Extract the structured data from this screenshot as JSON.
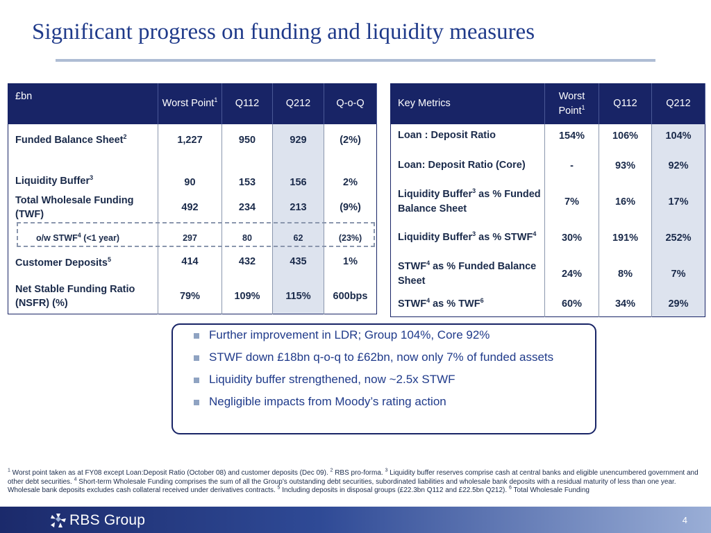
{
  "title": "Significant progress on funding and liquidity measures",
  "table1": {
    "headers": {
      "label": "£bn",
      "worst": "Worst Point",
      "worst_sup": "1",
      "q112": "Q112",
      "q212": "Q212",
      "qoq": "Q-o-Q"
    },
    "rows": [
      {
        "label": "Funded Balance Sheet",
        "sup": "2",
        "worst": "1,227",
        "q112": "950",
        "q212": "929",
        "qoq": "(2%)"
      },
      {
        "label": "Liquidity Buffer",
        "sup": "3",
        "worst": "90",
        "q112": "153",
        "q212": "156",
        "qoq": "2%"
      },
      {
        "label": "Total Wholesale Funding (TWF)",
        "sup": "",
        "worst": "492",
        "q112": "234",
        "q212": "213",
        "qoq": "(9%)"
      },
      {
        "label_pre": "o/w STWF",
        "sup": "4",
        "label_post": " (<1 year)",
        "worst": "297",
        "q112": "80",
        "q212": "62",
        "qoq": "(23%)"
      },
      {
        "label": "Customer Deposits",
        "sup": "5",
        "worst": "414",
        "q112": "432",
        "q212": "435",
        "qoq": "1%"
      },
      {
        "label": "Net Stable Funding Ratio (NSFR) (%)",
        "sup": "",
        "worst": "79%",
        "q112": "109%",
        "q212": "115%",
        "qoq": "600bps"
      }
    ]
  },
  "table2": {
    "headers": {
      "label": "Key Metrics",
      "worst": "Worst Point",
      "worst_sup": "1",
      "q112": "Q112",
      "q212": "Q212"
    },
    "rows": [
      {
        "label": "Loan : Deposit Ratio",
        "worst": "154%",
        "q112": "106%",
        "q212": "104%"
      },
      {
        "label": "Loan: Deposit Ratio (Core)",
        "worst": "-",
        "q112": "93%",
        "q212": "92%"
      },
      {
        "label_a": "Liquidity Buffer",
        "sup_a": "3",
        "label_b": " as % Funded Balance Sheet",
        "worst": "7%",
        "q112": "16%",
        "q212": "17%"
      },
      {
        "label_a": "Liquidity Buffer",
        "sup_a": "3",
        "label_b": " as % STWF",
        "sup_b": "4",
        "worst": "30%",
        "q112": "191%",
        "q212": "252%"
      },
      {
        "label_a": "STWF",
        "sup_a": "4",
        "label_b": " as % Funded Balance Sheet",
        "worst": "24%",
        "q112": "8%",
        "q212": "7%"
      },
      {
        "label_a": "STWF",
        "sup_a": "4",
        "label_b": " as % TWF",
        "sup_b": "6",
        "worst": "60%",
        "q112": "34%",
        "q212": "29%"
      }
    ]
  },
  "bullets": [
    "Further improvement in LDR; Group 104%, Core 92%",
    "STWF down £18bn q-o-q to £62bn, now only 7% of funded assets",
    "Liquidity buffer strengthened, now ~2.5x STWF",
    "Negligible impacts from Moody’s rating action"
  ],
  "footnotes": {
    "n1": "1",
    "t1": " Worst point taken as at FY08 except Loan:Deposit Ratio (October 08) and customer deposits (Dec 09).  ",
    "n2": "2",
    "t2": " RBS pro-forma.  ",
    "n3": "3",
    "t3": " Liquidity buffer reserves comprise cash at central banks and eligible unencumbered government and other debt securities.  ",
    "n4": "4",
    "t4": " Short-term Wholesale Funding comprises the sum of all the Group’s outstanding debt securities, subordinated liabilities and wholesale bank deposits with a residual maturity of less than one year.  Wholesale bank deposits excludes cash collateral received under derivatives contracts.  ",
    "n5": "5",
    "t5": " Including deposits in disposal groups (£22.3bn Q112 and £22.5bn Q212).  ",
    "n6": "6",
    "t6": " Total Wholesale Funding"
  },
  "footer": {
    "logo_text": "RBS Group",
    "page_number": "4"
  },
  "colors": {
    "header_navy": "#182466",
    "title_blue": "#1f3a8a",
    "shade": "#dde3ee",
    "bullet": "#8fa3c2"
  }
}
